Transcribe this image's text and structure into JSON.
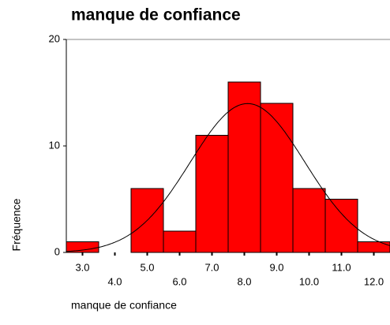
{
  "chart_data": {
    "type": "histogram",
    "title": "manque de confiance",
    "x_label": "manque de confiance",
    "y_label": "Fréquence",
    "bins": [
      2.5,
      3.5,
      4.5,
      5.5,
      6.5,
      7.5,
      8.5,
      9.5,
      10.5,
      11.5,
      12.5
    ],
    "counts": [
      1,
      0,
      6,
      2,
      11,
      16,
      14,
      6,
      5,
      1
    ],
    "color": "#ff0000",
    "xlim": [
      2.5,
      12.5
    ],
    "xticks": [
      {
        "value": 3,
        "label": "3.0"
      },
      {
        "value": 4,
        "label": "4.0"
      },
      {
        "value": 5,
        "label": "5.0"
      },
      {
        "value": 6,
        "label": "6.0"
      },
      {
        "value": 7,
        "label": "7.0"
      },
      {
        "value": 8,
        "label": "8.0"
      },
      {
        "value": 9,
        "label": "9.0"
      },
      {
        "value": 10,
        "label": "10.0"
      },
      {
        "value": 11,
        "label": "11.0"
      },
      {
        "value": 12,
        "label": "12.0"
      }
    ],
    "ylim": [
      0,
      20
    ],
    "yticks": [
      0,
      10,
      20
    ],
    "curve": {
      "mean": 8.1,
      "sd": 1.77
    }
  }
}
